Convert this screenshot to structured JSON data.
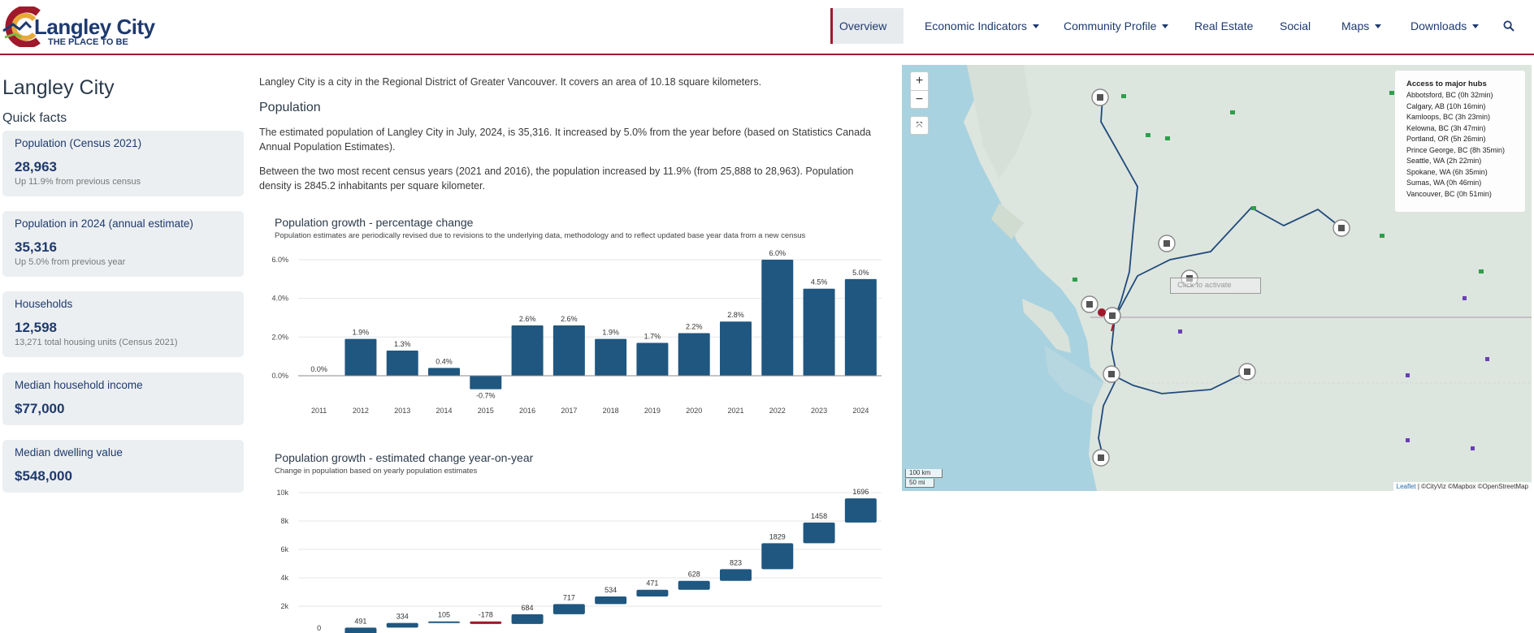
{
  "header": {
    "logo_name": "Langley City",
    "logo_tagline": "THE PLACE TO BE",
    "nav": [
      {
        "label": "Overview"
      },
      {
        "label": "Economic Indicators"
      },
      {
        "label": "Community Profile"
      },
      {
        "label": "Real Estate"
      },
      {
        "label": "Social"
      },
      {
        "label": "Maps"
      },
      {
        "label": "Downloads"
      }
    ]
  },
  "sidebar": {
    "title": "Langley City",
    "quick_facts_label": "Quick facts",
    "facts": [
      {
        "label": "Population (Census 2021)",
        "value": "28,963",
        "sub": "Up 11.9% from previous census"
      },
      {
        "label": "Population in 2024 (annual estimate)",
        "value": "35,316",
        "sub": "Up 5.0% from previous year"
      },
      {
        "label": "Households",
        "value": "12,598",
        "sub": "13,271 total housing units (Census 2021)"
      },
      {
        "label": "Median household income",
        "value": "$77,000",
        "sub": ""
      },
      {
        "label": "Median dwelling value",
        "value": "$548,000",
        "sub": ""
      }
    ]
  },
  "main": {
    "intro": "Langley City is a city in the Regional District of Greater Vancouver. It covers an area of 10.18 square kilometers.",
    "population_heading": "Population",
    "para1": "The estimated population of Langley City in July, 2024, is 35,316. It increased by 5.0% from the year before (based on Statistics Canada Annual Population Estimates).",
    "para2": "Between the two most recent census years (2021 and 2016), the population increased by 11.9% (from 25,888 to 28,963). Population density is 2845.2 inhabitants per square kilometer."
  },
  "colors": {
    "bar": "#1f5780",
    "negative": "#a0192b",
    "accent": "#a0192b",
    "brand": "#1e3a6e"
  },
  "chart_data": [
    {
      "type": "bar",
      "title": "Population growth - percentage change",
      "subtitle": "Population estimates are periodically revised due to revisions to the underlying data, methodology and to reflect updated base year data from a new census",
      "categories": [
        "2011",
        "2012",
        "2013",
        "2014",
        "2015",
        "2016",
        "2017",
        "2018",
        "2019",
        "2020",
        "2021",
        "2022",
        "2023",
        "2024"
      ],
      "values": [
        0.0,
        1.9,
        1.3,
        0.4,
        -0.7,
        2.6,
        2.6,
        1.9,
        1.7,
        2.2,
        2.8,
        6.0,
        4.5,
        5.0
      ],
      "data_labels": [
        "0.0%",
        "1.9%",
        "1.3%",
        "0.4%",
        "-0.7%",
        "2.6%",
        "2.6%",
        "1.9%",
        "1.7%",
        "2.2%",
        "2.8%",
        "6.0%",
        "4.5%",
        "5.0%"
      ],
      "yticks": [
        "0.0%",
        "2.0%",
        "4.0%",
        "6.0%"
      ],
      "ytick_values": [
        0,
        2,
        4,
        6
      ],
      "ylim": [
        -0.8,
        6.0
      ],
      "grid": true
    },
    {
      "type": "waterfall",
      "title": "Population growth - estimated change year-on-year",
      "subtitle": "Change in population based on yearly population estimates",
      "values": [
        0,
        491,
        334,
        105,
        -178,
        684,
        717,
        534,
        471,
        628,
        823,
        1829,
        1458,
        1696
      ],
      "data_labels": [
        "0",
        "491",
        "334",
        "105",
        "-178",
        "684",
        "717",
        "534",
        "471",
        "628",
        "823",
        "1829",
        "1458",
        "1696"
      ],
      "yticks": [
        "2k",
        "4k",
        "6k",
        "8k",
        "10k"
      ],
      "ytick_values": [
        2000,
        4000,
        6000,
        8000,
        10000
      ],
      "grid": true
    }
  ],
  "map": {
    "zoom_in": "+",
    "zoom_out": "−",
    "hubs_title": "Access to major hubs",
    "hubs": [
      "Abbotsford, BC (0h 32min)",
      "Calgary, AB (10h 16min)",
      "Kamloops, BC (3h 23min)",
      "Kelowna, BC (3h 47min)",
      "Portland, OR (5h 26min)",
      "Prince George, BC (8h 35min)",
      "Seattle, WA (2h 22min)",
      "Spokane, WA (6h 35min)",
      "Sumas, WA (0h 46min)",
      "Vancouver, BC (0h 51min)"
    ],
    "click_note": "Click to activate",
    "scale_km": "100 km",
    "scale_mi": "50 mi",
    "attribution_leaflet": "Leaflet",
    "attribution_rest": " | ©CityViz ©Mapbox ©OpenStreetMap",
    "icons": [
      "city-hub-icon",
      "zoom-in-icon",
      "zoom-out-icon",
      "fullscreen-icon"
    ]
  }
}
